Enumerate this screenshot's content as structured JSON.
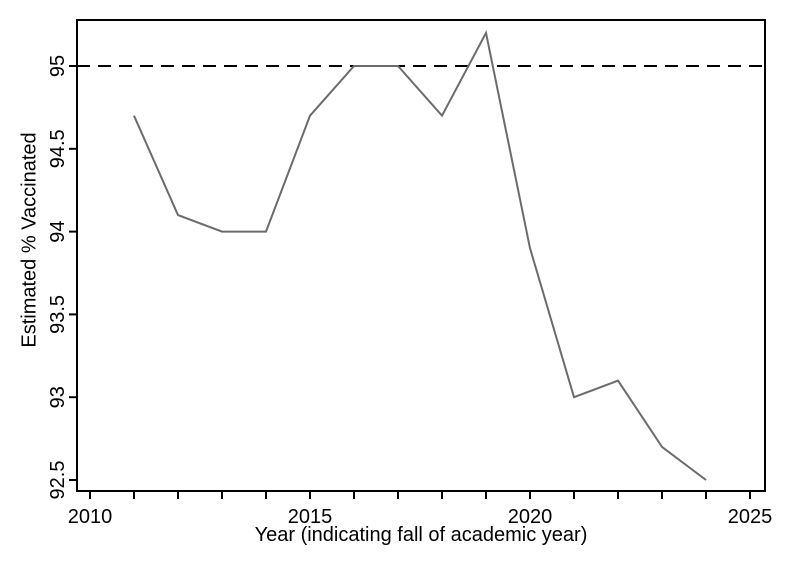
{
  "chart_data": {
    "type": "line",
    "title": "",
    "xlabel": "Year (indicating fall of academic year)",
    "ylabel": "Estimated % Vaccinated",
    "x": [
      2011,
      2012,
      2013,
      2014,
      2015,
      2016,
      2017,
      2018,
      2019,
      2020,
      2021,
      2022,
      2023,
      2024
    ],
    "values": [
      94.7,
      94.1,
      94.0,
      94.0,
      94.7,
      95.0,
      95.0,
      94.7,
      95.2,
      93.9,
      93.0,
      93.1,
      92.7,
      92.5
    ],
    "reference_line": {
      "value": 95,
      "style": "dashed",
      "color": "#000000"
    },
    "xlim": [
      2010,
      2025
    ],
    "ylim": [
      92.5,
      95
    ],
    "x_major_ticks": [
      2010,
      2015,
      2020,
      2025
    ],
    "x_minor_ticks": [
      2010,
      2011,
      2012,
      2013,
      2014,
      2015,
      2016,
      2017,
      2018,
      2019,
      2020,
      2021,
      2022,
      2023,
      2024,
      2025
    ],
    "y_ticks": [
      92.5,
      93,
      93.5,
      94,
      94.5,
      95
    ],
    "grid": false,
    "legend": "none",
    "line_color": "#6b6b6b",
    "axis_color": "#000000",
    "background_color": "#ffffff"
  }
}
